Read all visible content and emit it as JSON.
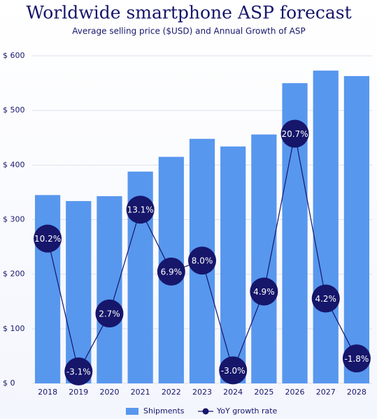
{
  "chart_data": {
    "type": "bar-line",
    "title": "Worldwide smartphone ASP forecast",
    "subtitle": "Average selling price ($USD) and Annual Growth of ASP",
    "categories": [
      "2018",
      "2019",
      "2020",
      "2021",
      "2022",
      "2023",
      "2024",
      "2025",
      "2026",
      "2027",
      "2028"
    ],
    "series": [
      {
        "name": "Shipments",
        "type": "bar",
        "color": "#5797ee",
        "values": [
          345,
          334,
          343,
          388,
          415,
          448,
          434,
          456,
          550,
          573,
          563
        ]
      },
      {
        "name": "YoY growth rate",
        "type": "line",
        "axis": "y2",
        "color": "#16166b",
        "values": [
          10.2,
          -3.1,
          2.7,
          13.1,
          6.9,
          8.0,
          -3.0,
          4.9,
          20.7,
          4.2,
          -1.8
        ],
        "value_labels": [
          "10.2%",
          "-3.1%",
          "2.7%",
          "13.1%",
          "6.9%",
          "8.0%",
          "-3.0%",
          "4.9%",
          "20.7%",
          "4.2%",
          "-1.8%"
        ]
      }
    ],
    "ylim": [
      0,
      600
    ],
    "yticks": [
      {
        "value": 0,
        "label": "$ 0"
      },
      {
        "value": 100,
        "label": "$ 100"
      },
      {
        "value": 200,
        "label": "$ 200"
      },
      {
        "value": 300,
        "label": "$ 300"
      },
      {
        "value": 400,
        "label": "$ 400"
      },
      {
        "value": 500,
        "label": "$ 500"
      },
      {
        "value": 600,
        "label": "$ 600"
      }
    ],
    "y2lim": [
      -4.3,
      28.5
    ],
    "grid": true,
    "legend": "bottom"
  }
}
